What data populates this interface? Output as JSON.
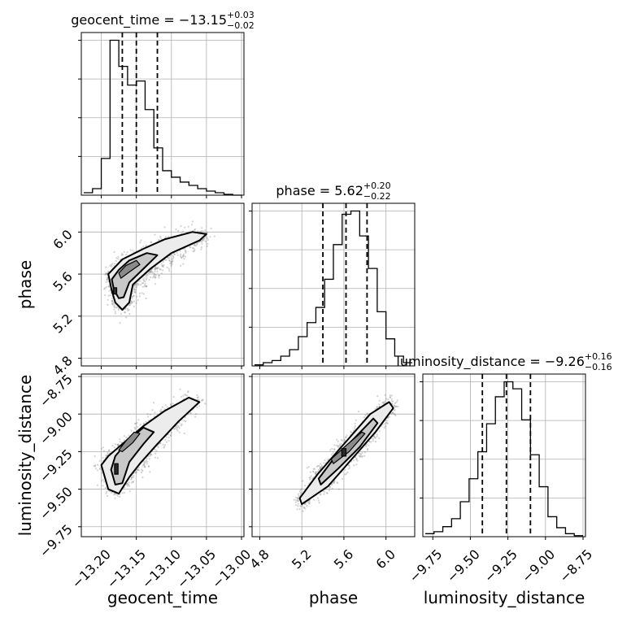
{
  "chart_data": {
    "type": "corner",
    "parameters": [
      {
        "name": "geocent_time",
        "axis_label": "geocent_time",
        "title": {
          "prefix": "geocent_time = ",
          "median": "−13.15",
          "plus": "+0.03",
          "minus": "−0.02"
        },
        "median": -13.15,
        "q_low": -13.17,
        "q_high": -13.12,
        "range": [
          -13.225,
          -13.0
        ],
        "ticks": [
          -13.2,
          -13.15,
          -13.1,
          -13.05,
          -13.0
        ],
        "tick_labels": [
          "−13.20",
          "−13.15",
          "−13.10",
          "−13.05",
          "−13.00"
        ],
        "hist": {
          "edges": [
            -13.225,
            -13.2125,
            -13.2,
            -13.1875,
            -13.175,
            -13.1625,
            -13.15,
            -13.1375,
            -13.125,
            -13.1125,
            -13.1,
            -13.0875,
            -13.075,
            -13.0625,
            -13.05,
            -13.0375,
            -13.025,
            -13.0125,
            -13.0
          ],
          "counts": [
            3,
            8,
            45,
            190,
            158,
            135,
            140,
            105,
            58,
            30,
            22,
            16,
            12,
            8,
            5,
            3,
            1,
            0
          ]
        }
      },
      {
        "name": "phase",
        "axis_label": "phase",
        "title": {
          "prefix": "phase = ",
          "median": "5.62",
          "plus": "+0.20",
          "minus": "−0.22"
        },
        "median": 5.62,
        "q_low": 5.4,
        "q_high": 5.82,
        "range": [
          4.75,
          6.25
        ],
        "ticks": [
          4.8,
          5.2,
          5.6,
          6.0
        ],
        "tick_labels": [
          "4.8",
          "5.2",
          "5.6",
          "6.0"
        ],
        "hist": {
          "edges": [
            4.75,
            4.8333,
            4.9167,
            5.0,
            5.0833,
            5.1667,
            5.25,
            5.3333,
            5.4167,
            5.5,
            5.5833,
            5.6667,
            5.75,
            5.8333,
            5.9167,
            6.0,
            6.0833,
            6.1667,
            6.25
          ],
          "counts": [
            1,
            3,
            5,
            9,
            15,
            27,
            40,
            54,
            80,
            112,
            140,
            143,
            120,
            90,
            50,
            25,
            9,
            3
          ]
        }
      },
      {
        "name": "luminosity_distance",
        "axis_label": "luminosity_distance",
        "title": {
          "prefix": "luminosity_distance = ",
          "median": "−9.26",
          "plus": "+0.16",
          "minus": "−0.16"
        },
        "median": -9.26,
        "q_low": -9.42,
        "q_high": -9.1,
        "range": [
          -9.8,
          -8.75
        ],
        "ticks": [
          -9.75,
          -9.5,
          -9.25,
          -9.0,
          -8.75
        ],
        "tick_labels": [
          "−9.75",
          "−9.50",
          "−9.25",
          "−9.00",
          "−8.75"
        ],
        "hist": {
          "edges": [
            -9.8,
            -9.7417,
            -9.6833,
            -9.625,
            -9.5667,
            -9.5083,
            -9.45,
            -9.3917,
            -9.3333,
            -9.275,
            -9.2167,
            -9.1583,
            -9.1,
            -9.0417,
            -8.9833,
            -8.925,
            -8.8667,
            -8.8083,
            -8.75
          ],
          "counts": [
            3,
            5,
            10,
            18,
            35,
            58,
            85,
            113,
            140,
            155,
            148,
            117,
            82,
            50,
            20,
            9,
            3,
            1
          ]
        }
      }
    ],
    "pair_panels": [
      {
        "x": "geocent_time",
        "y": "phase",
        "contour_levels": [
          [
            [
              -13.185,
              5.44
            ],
            [
              -13.18,
              5.33
            ],
            [
              -13.17,
              5.26
            ],
            [
              -13.16,
              5.33
            ],
            [
              -13.155,
              5.5
            ],
            [
              -13.13,
              5.65
            ],
            [
              -13.1,
              5.8
            ],
            [
              -13.06,
              5.92
            ],
            [
              -13.05,
              5.98
            ],
            [
              -13.07,
              6.0
            ],
            [
              -13.11,
              5.93
            ],
            [
              -13.14,
              5.84
            ],
            [
              -13.17,
              5.74
            ],
            [
              -13.19,
              5.6
            ]
          ],
          [
            [
              -13.182,
              5.45
            ],
            [
              -13.175,
              5.37
            ],
            [
              -13.168,
              5.38
            ],
            [
              -13.16,
              5.52
            ],
            [
              -13.14,
              5.65
            ],
            [
              -13.12,
              5.78
            ],
            [
              -13.135,
              5.8
            ],
            [
              -13.16,
              5.73
            ],
            [
              -13.175,
              5.64
            ],
            [
              -13.185,
              5.55
            ]
          ],
          [
            [
              -13.172,
              5.56
            ],
            [
              -13.16,
              5.62
            ],
            [
              -13.145,
              5.69
            ],
            [
              -13.15,
              5.73
            ],
            [
              -13.165,
              5.68
            ],
            [
              -13.175,
              5.61
            ]
          ],
          [
            [
              -13.183,
              5.41
            ],
            [
              -13.178,
              5.41
            ],
            [
              -13.178,
              5.47
            ],
            [
              -13.183,
              5.47
            ]
          ]
        ]
      },
      {
        "x": "geocent_time",
        "y": "luminosity_distance",
        "contour_levels": [
          [
            [
              -13.2,
              -9.34
            ],
            [
              -13.19,
              -9.5
            ],
            [
              -13.175,
              -9.53
            ],
            [
              -13.16,
              -9.42
            ],
            [
              -13.145,
              -9.33
            ],
            [
              -13.12,
              -9.2
            ],
            [
              -13.09,
              -9.05
            ],
            [
              -13.06,
              -8.92
            ],
            [
              -13.075,
              -8.89
            ],
            [
              -13.11,
              -8.98
            ],
            [
              -13.14,
              -9.08
            ],
            [
              -13.17,
              -9.2
            ],
            [
              -13.19,
              -9.28
            ]
          ],
          [
            [
              -13.186,
              -9.37
            ],
            [
              -13.18,
              -9.47
            ],
            [
              -13.17,
              -9.46
            ],
            [
              -13.16,
              -9.32
            ],
            [
              -13.14,
              -9.2
            ],
            [
              -13.125,
              -9.12
            ],
            [
              -13.14,
              -9.09
            ],
            [
              -13.16,
              -9.17
            ],
            [
              -13.18,
              -9.28
            ]
          ],
          [
            [
              -13.17,
              -9.25
            ],
            [
              -13.155,
              -9.19
            ],
            [
              -13.145,
              -9.13
            ],
            [
              -13.153,
              -9.12
            ],
            [
              -13.165,
              -9.18
            ],
            [
              -13.175,
              -9.24
            ]
          ],
          [
            [
              -13.181,
              -9.33
            ],
            [
              -13.176,
              -9.33
            ],
            [
              -13.176,
              -9.4
            ],
            [
              -13.181,
              -9.4
            ]
          ]
        ]
      },
      {
        "x": "phase",
        "y": "luminosity_distance",
        "contour_levels": [
          [
            [
              5.2,
              -9.6
            ],
            [
              5.45,
              -9.48
            ],
            [
              5.7,
              -9.28
            ],
            [
              5.9,
              -9.12
            ],
            [
              6.07,
              -8.96
            ],
            [
              6.03,
              -8.92
            ],
            [
              5.85,
              -9.0
            ],
            [
              5.6,
              -9.2
            ],
            [
              5.35,
              -9.4
            ],
            [
              5.18,
              -9.56
            ]
          ],
          [
            [
              5.38,
              -9.47
            ],
            [
              5.55,
              -9.36
            ],
            [
              5.75,
              -9.22
            ],
            [
              5.92,
              -9.06
            ],
            [
              5.88,
              -9.03
            ],
            [
              5.7,
              -9.16
            ],
            [
              5.5,
              -9.3
            ],
            [
              5.36,
              -9.43
            ]
          ],
          [
            [
              5.5,
              -9.33
            ],
            [
              5.65,
              -9.25
            ],
            [
              5.8,
              -9.13
            ],
            [
              5.77,
              -9.12
            ],
            [
              5.62,
              -9.21
            ],
            [
              5.48,
              -9.3
            ]
          ],
          [
            [
              5.58,
              -9.28
            ],
            [
              5.62,
              -9.28
            ],
            [
              5.62,
              -9.23
            ],
            [
              5.58,
              -9.23
            ]
          ]
        ]
      }
    ]
  }
}
